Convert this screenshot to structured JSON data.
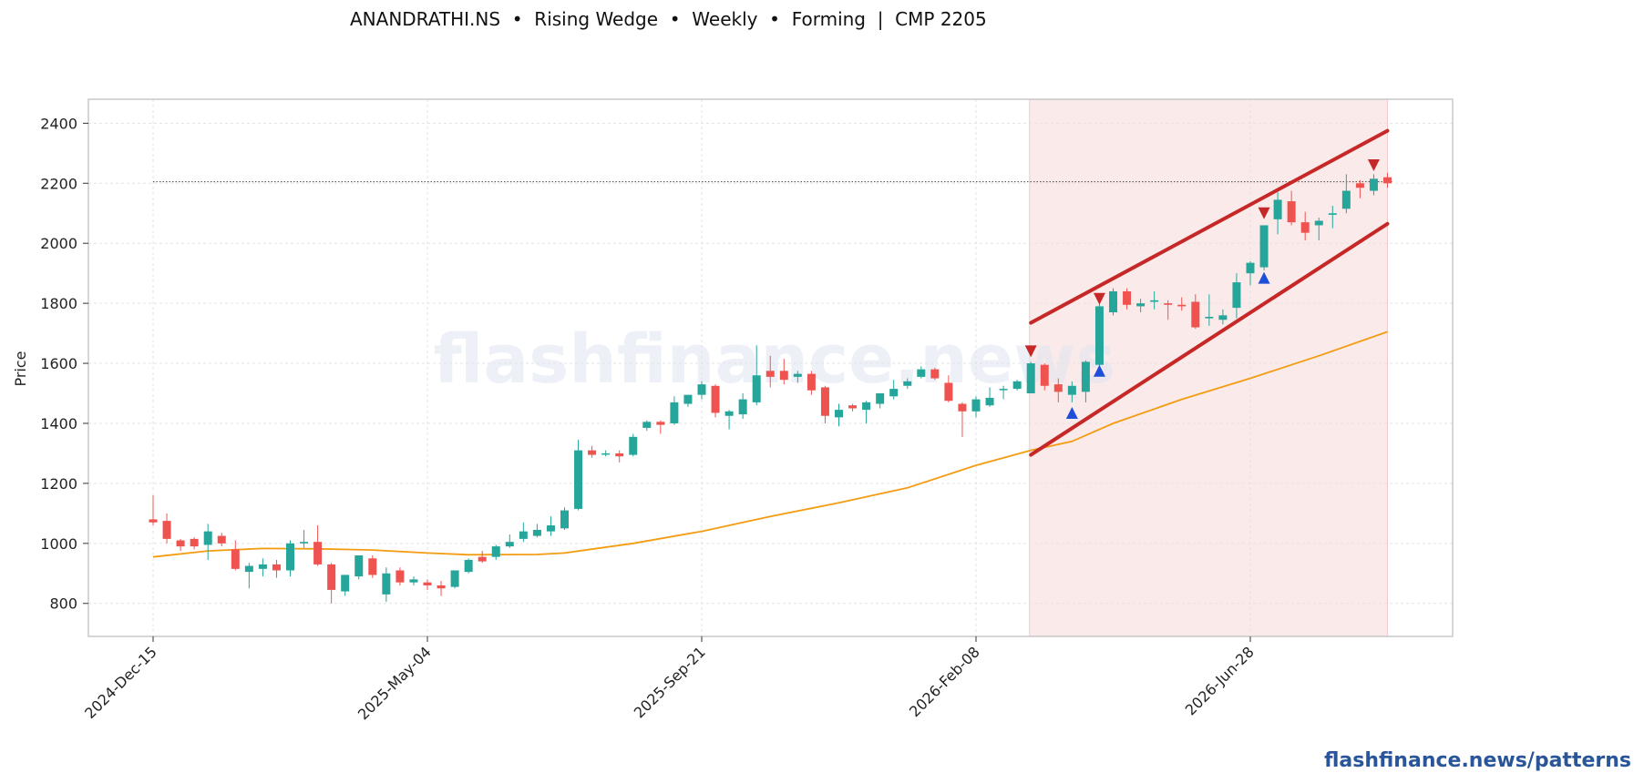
{
  "title": "ANANDRATHI.NS  •  Rising Wedge  •  Weekly  •  Forming  |  CMP 2205",
  "footer": "flashfinance.news/patterns",
  "watermark": "flashfinance.news",
  "colors": {
    "up": "#26a69a",
    "down": "#ef5350",
    "ma": "#f39c12",
    "wedge": "#c62828",
    "zone": "#fbeaea",
    "marker_up": "#1f4fd8",
    "marker_down": "#c62828"
  },
  "chart_data": {
    "type": "candlestick",
    "ylabel": "Price",
    "ylim": [
      690,
      2480
    ],
    "yticks": [
      800,
      1000,
      1200,
      1400,
      1600,
      1800,
      2000,
      2200,
      2400
    ],
    "x_tick_labels": [
      "2024-Dec-15",
      "2025-May-04",
      "2025-Sep-21",
      "2026-Feb-08",
      "2026-Jun-28"
    ],
    "x_tick_index": [
      0,
      20,
      40,
      60,
      80
    ],
    "grid": true,
    "cmp_line": 2205,
    "pattern_zone": {
      "start_index": 64,
      "end_index": 90
    },
    "wedge_upper": {
      "from": [
        64,
        1735
      ],
      "to": [
        90,
        2375
      ]
    },
    "wedge_lower": {
      "from": [
        64,
        1295
      ],
      "to": [
        90,
        2065
      ]
    },
    "markers": [
      {
        "index": 64,
        "price": 1640,
        "type": "down"
      },
      {
        "index": 67,
        "price": 1435,
        "type": "up"
      },
      {
        "index": 69,
        "price": 1815,
        "type": "down"
      },
      {
        "index": 69,
        "price": 1575,
        "type": "up"
      },
      {
        "index": 81,
        "price": 2100,
        "type": "down"
      },
      {
        "index": 81,
        "price": 1885,
        "type": "up"
      },
      {
        "index": 89,
        "price": 2260,
        "type": "down"
      }
    ],
    "ma": [
      [
        0,
        955
      ],
      [
        4,
        975
      ],
      [
        8,
        983
      ],
      [
        12,
        982
      ],
      [
        16,
        978
      ],
      [
        20,
        968
      ],
      [
        23,
        962
      ],
      [
        28,
        963
      ],
      [
        30,
        968
      ],
      [
        35,
        1000
      ],
      [
        40,
        1040
      ],
      [
        45,
        1090
      ],
      [
        50,
        1135
      ],
      [
        55,
        1185
      ],
      [
        60,
        1260
      ],
      [
        62,
        1285
      ],
      [
        64,
        1310
      ],
      [
        67,
        1340
      ],
      [
        70,
        1400
      ],
      [
        75,
        1480
      ],
      [
        80,
        1550
      ],
      [
        85,
        1625
      ],
      [
        90,
        1705
      ]
    ],
    "candles": [
      [
        0,
        1080,
        1160,
        1060,
        1070
      ],
      [
        1,
        1075,
        1100,
        1000,
        1015
      ],
      [
        2,
        1010,
        1015,
        975,
        990
      ],
      [
        3,
        1015,
        1020,
        980,
        990
      ],
      [
        4,
        995,
        1065,
        945,
        1040
      ],
      [
        5,
        1025,
        1035,
        990,
        1000
      ],
      [
        6,
        980,
        1010,
        910,
        915
      ],
      [
        7,
        905,
        935,
        850,
        925
      ],
      [
        8,
        915,
        950,
        890,
        930
      ],
      [
        9,
        930,
        945,
        885,
        910
      ],
      [
        10,
        910,
        1010,
        890,
        1000
      ],
      [
        11,
        1000,
        1045,
        985,
        1005
      ],
      [
        12,
        1005,
        1060,
        925,
        930
      ],
      [
        13,
        930,
        935,
        800,
        845
      ],
      [
        14,
        840,
        895,
        825,
        895
      ],
      [
        15,
        890,
        960,
        880,
        960
      ],
      [
        16,
        950,
        960,
        885,
        895
      ],
      [
        17,
        830,
        920,
        805,
        900
      ],
      [
        18,
        910,
        920,
        860,
        870
      ],
      [
        19,
        870,
        890,
        860,
        880
      ],
      [
        20,
        870,
        880,
        845,
        860
      ],
      [
        21,
        860,
        875,
        825,
        850
      ],
      [
        22,
        855,
        910,
        850,
        910
      ],
      [
        23,
        905,
        950,
        900,
        945
      ],
      [
        24,
        955,
        975,
        935,
        940
      ],
      [
        25,
        955,
        995,
        945,
        990
      ],
      [
        26,
        990,
        1030,
        985,
        1005
      ],
      [
        27,
        1015,
        1070,
        1005,
        1040
      ],
      [
        28,
        1025,
        1065,
        1020,
        1045
      ],
      [
        29,
        1040,
        1090,
        1025,
        1060
      ],
      [
        30,
        1050,
        1120,
        1045,
        1110
      ],
      [
        31,
        1115,
        1345,
        1110,
        1310
      ],
      [
        32,
        1310,
        1325,
        1285,
        1295
      ],
      [
        33,
        1300,
        1310,
        1290,
        1300
      ],
      [
        34,
        1300,
        1310,
        1270,
        1290
      ],
      [
        35,
        1295,
        1365,
        1290,
        1355
      ],
      [
        36,
        1385,
        1410,
        1375,
        1405
      ],
      [
        37,
        1405,
        1410,
        1365,
        1395
      ],
      [
        38,
        1400,
        1490,
        1395,
        1470
      ],
      [
        39,
        1465,
        1495,
        1455,
        1495
      ],
      [
        40,
        1495,
        1540,
        1480,
        1530
      ],
      [
        41,
        1525,
        1530,
        1420,
        1435
      ],
      [
        42,
        1425,
        1445,
        1380,
        1440
      ],
      [
        43,
        1430,
        1500,
        1415,
        1480
      ],
      [
        44,
        1470,
        1660,
        1460,
        1560
      ],
      [
        45,
        1575,
        1625,
        1520,
        1555
      ],
      [
        46,
        1575,
        1615,
        1530,
        1545
      ],
      [
        47,
        1555,
        1575,
        1535,
        1565
      ],
      [
        48,
        1565,
        1575,
        1495,
        1510
      ],
      [
        49,
        1520,
        1525,
        1400,
        1425
      ],
      [
        50,
        1420,
        1465,
        1390,
        1445
      ],
      [
        51,
        1460,
        1465,
        1440,
        1450
      ],
      [
        52,
        1445,
        1475,
        1400,
        1470
      ],
      [
        53,
        1465,
        1500,
        1450,
        1500
      ],
      [
        54,
        1490,
        1545,
        1480,
        1515
      ],
      [
        55,
        1525,
        1550,
        1515,
        1540
      ],
      [
        56,
        1555,
        1590,
        1550,
        1580
      ],
      [
        57,
        1580,
        1585,
        1545,
        1550
      ],
      [
        58,
        1535,
        1560,
        1470,
        1475
      ],
      [
        59,
        1465,
        1470,
        1355,
        1440
      ],
      [
        60,
        1440,
        1490,
        1420,
        1480
      ],
      [
        61,
        1460,
        1520,
        1455,
        1485
      ],
      [
        62,
        1515,
        1525,
        1480,
        1515
      ],
      [
        63,
        1515,
        1545,
        1510,
        1540
      ],
      [
        64,
        1500,
        1605,
        1500,
        1600
      ],
      [
        65,
        1595,
        1600,
        1510,
        1525
      ],
      [
        66,
        1530,
        1550,
        1470,
        1505
      ],
      [
        67,
        1495,
        1540,
        1470,
        1525
      ],
      [
        68,
        1505,
        1610,
        1470,
        1605
      ],
      [
        69,
        1595,
        1800,
        1580,
        1790
      ],
      [
        70,
        1770,
        1850,
        1760,
        1840
      ],
      [
        71,
        1840,
        1850,
        1780,
        1795
      ],
      [
        72,
        1790,
        1815,
        1770,
        1800
      ],
      [
        73,
        1805,
        1840,
        1780,
        1810
      ],
      [
        74,
        1800,
        1810,
        1745,
        1795
      ],
      [
        75,
        1795,
        1820,
        1775,
        1790
      ],
      [
        76,
        1805,
        1830,
        1715,
        1720
      ],
      [
        77,
        1750,
        1830,
        1725,
        1755
      ],
      [
        78,
        1745,
        1780,
        1730,
        1760
      ],
      [
        79,
        1785,
        1900,
        1750,
        1870
      ],
      [
        80,
        1900,
        1940,
        1860,
        1935
      ],
      [
        81,
        1920,
        2060,
        1910,
        2060
      ],
      [
        82,
        2080,
        2170,
        2030,
        2145
      ],
      [
        83,
        2140,
        2175,
        2060,
        2070
      ],
      [
        84,
        2070,
        2105,
        2010,
        2035
      ],
      [
        85,
        2060,
        2085,
        2010,
        2075
      ],
      [
        86,
        2095,
        2125,
        2050,
        2100
      ],
      [
        87,
        2115,
        2230,
        2100,
        2175
      ],
      [
        88,
        2200,
        2210,
        2150,
        2185
      ],
      [
        89,
        2175,
        2230,
        2160,
        2215
      ],
      [
        90,
        2220,
        2235,
        2185,
        2200
      ]
    ]
  }
}
